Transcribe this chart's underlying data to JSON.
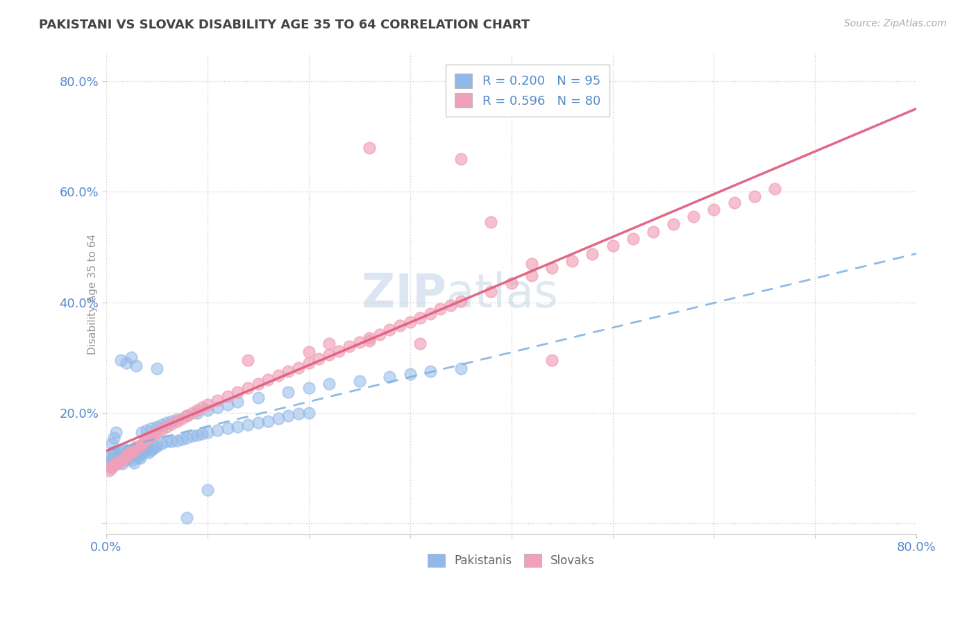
{
  "title": "PAKISTANI VS SLOVAK DISABILITY AGE 35 TO 64 CORRELATION CHART",
  "source": "Source: ZipAtlas.com",
  "ylabel": "Disability Age 35 to 64",
  "xlim": [
    0.0,
    0.8
  ],
  "ylim": [
    -0.02,
    0.85
  ],
  "yticks": [
    0.0,
    0.2,
    0.4,
    0.6,
    0.8
  ],
  "ytick_labels": [
    "",
    "20.0%",
    "40.0%",
    "60.0%",
    "80.0%"
  ],
  "pakistani_R": 0.2,
  "pakistani_N": 95,
  "slovak_R": 0.596,
  "slovak_N": 80,
  "pakistani_color": "#92b8e8",
  "slovak_color": "#f0a0b8",
  "pakistani_trend_color": "#7ab0e0",
  "slovak_trend_color": "#e06080",
  "background_color": "#ffffff",
  "grid_color": "#d0d0d0",
  "title_color": "#444444",
  "axis_label_color": "#5588cc",
  "legend_text_color": "#5588cc",
  "watermark_color": "#c5d8f0",
  "pakistani_x": [
    0.002,
    0.003,
    0.004,
    0.005,
    0.006,
    0.007,
    0.008,
    0.009,
    0.01,
    0.011,
    0.012,
    0.013,
    0.014,
    0.015,
    0.016,
    0.017,
    0.018,
    0.019,
    0.02,
    0.021,
    0.022,
    0.023,
    0.024,
    0.025,
    0.026,
    0.027,
    0.028,
    0.029,
    0.03,
    0.031,
    0.032,
    0.033,
    0.034,
    0.035,
    0.036,
    0.038,
    0.04,
    0.042,
    0.044,
    0.046,
    0.048,
    0.05,
    0.055,
    0.06,
    0.065,
    0.07,
    0.075,
    0.08,
    0.085,
    0.09,
    0.095,
    0.1,
    0.11,
    0.12,
    0.13,
    0.14,
    0.15,
    0.16,
    0.17,
    0.18,
    0.19,
    0.2,
    0.05,
    0.03,
    0.02,
    0.015,
    0.025,
    0.01,
    0.008,
    0.006,
    0.035,
    0.04,
    0.045,
    0.05,
    0.055,
    0.06,
    0.065,
    0.07,
    0.08,
    0.09,
    0.1,
    0.11,
    0.12,
    0.13,
    0.15,
    0.18,
    0.2,
    0.22,
    0.25,
    0.28,
    0.3,
    0.32,
    0.35,
    0.1,
    0.08
  ],
  "pakistani_y": [
    0.11,
    0.105,
    0.12,
    0.115,
    0.1,
    0.125,
    0.13,
    0.108,
    0.118,
    0.122,
    0.112,
    0.128,
    0.116,
    0.132,
    0.108,
    0.124,
    0.135,
    0.114,
    0.12,
    0.126,
    0.118,
    0.13,
    0.122,
    0.128,
    0.115,
    0.132,
    0.11,
    0.138,
    0.125,
    0.12,
    0.128,
    0.122,
    0.118,
    0.13,
    0.128,
    0.13,
    0.135,
    0.128,
    0.132,
    0.135,
    0.138,
    0.14,
    0.145,
    0.148,
    0.148,
    0.15,
    0.152,
    0.155,
    0.158,
    0.16,
    0.162,
    0.165,
    0.168,
    0.172,
    0.175,
    0.178,
    0.182,
    0.185,
    0.19,
    0.195,
    0.198,
    0.2,
    0.28,
    0.285,
    0.29,
    0.295,
    0.3,
    0.165,
    0.155,
    0.145,
    0.165,
    0.168,
    0.172,
    0.175,
    0.178,
    0.182,
    0.185,
    0.188,
    0.195,
    0.2,
    0.205,
    0.21,
    0.215,
    0.22,
    0.228,
    0.238,
    0.245,
    0.252,
    0.258,
    0.265,
    0.27,
    0.275,
    0.28,
    0.06,
    0.01
  ],
  "slovak_x": [
    0.003,
    0.005,
    0.008,
    0.01,
    0.012,
    0.015,
    0.018,
    0.02,
    0.022,
    0.025,
    0.028,
    0.03,
    0.032,
    0.035,
    0.038,
    0.04,
    0.042,
    0.045,
    0.048,
    0.05,
    0.055,
    0.06,
    0.065,
    0.07,
    0.075,
    0.08,
    0.085,
    0.09,
    0.095,
    0.1,
    0.11,
    0.12,
    0.13,
    0.14,
    0.15,
    0.16,
    0.17,
    0.18,
    0.19,
    0.2,
    0.21,
    0.22,
    0.23,
    0.24,
    0.25,
    0.26,
    0.27,
    0.28,
    0.29,
    0.3,
    0.31,
    0.32,
    0.33,
    0.34,
    0.35,
    0.38,
    0.4,
    0.42,
    0.44,
    0.46,
    0.48,
    0.5,
    0.52,
    0.54,
    0.56,
    0.58,
    0.6,
    0.62,
    0.64,
    0.66,
    0.26,
    0.35,
    0.38,
    0.42,
    0.44,
    0.26,
    0.31,
    0.2,
    0.22,
    0.14
  ],
  "slovak_y": [
    0.095,
    0.1,
    0.105,
    0.11,
    0.108,
    0.112,
    0.118,
    0.122,
    0.125,
    0.128,
    0.132,
    0.135,
    0.14,
    0.142,
    0.148,
    0.152,
    0.155,
    0.158,
    0.162,
    0.165,
    0.17,
    0.175,
    0.18,
    0.185,
    0.19,
    0.195,
    0.2,
    0.205,
    0.21,
    0.215,
    0.222,
    0.23,
    0.238,
    0.245,
    0.252,
    0.26,
    0.268,
    0.275,
    0.282,
    0.29,
    0.298,
    0.305,
    0.312,
    0.32,
    0.328,
    0.335,
    0.342,
    0.35,
    0.358,
    0.365,
    0.372,
    0.38,
    0.388,
    0.395,
    0.402,
    0.42,
    0.435,
    0.448,
    0.462,
    0.475,
    0.488,
    0.502,
    0.515,
    0.528,
    0.542,
    0.555,
    0.568,
    0.58,
    0.592,
    0.605,
    0.68,
    0.66,
    0.545,
    0.47,
    0.295,
    0.33,
    0.325,
    0.31,
    0.325,
    0.295
  ]
}
